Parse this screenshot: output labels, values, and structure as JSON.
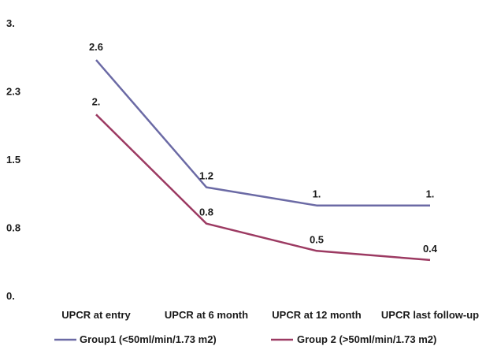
{
  "chart_data": {
    "type": "line",
    "categories": [
      "UPCR at entry",
      "UPCR at 6 month",
      "UPCR at 12 month",
      "UPCR last follow-up"
    ],
    "y_ticks": [
      {
        "value": 0.0,
        "label": "0."
      },
      {
        "value": 0.75,
        "label": "0.8"
      },
      {
        "value": 1.5,
        "label": "1.5"
      },
      {
        "value": 2.25,
        "label": "2.3"
      },
      {
        "value": 3.0,
        "label": "3."
      }
    ],
    "ylim": [
      0,
      3
    ],
    "grid": false,
    "legend_position": "bottom",
    "series": [
      {
        "name": "Group1 (<50ml/min/1.73 m2)",
        "color": "#6b6aa5",
        "values": [
          2.6,
          1.2,
          1.0,
          1.0
        ],
        "data_labels": [
          "2.6",
          "1.2",
          "1.",
          "1."
        ]
      },
      {
        "name": "Group 2 (>50ml/min/1.73 m2)",
        "color": "#9c3a62",
        "values": [
          2.0,
          0.8,
          0.5,
          0.4
        ],
        "data_labels": [
          "2.",
          "0.8",
          "0.5",
          "0.4"
        ]
      }
    ]
  }
}
